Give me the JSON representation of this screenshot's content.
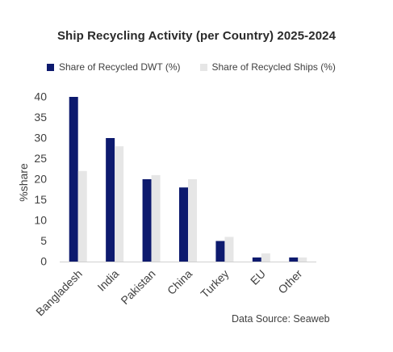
{
  "chart_data": {
    "type": "bar",
    "title": "Ship Recycling Activity (per Country) 2025-2024",
    "ylabel": "%share",
    "xlabel": "",
    "ylim": [
      0,
      40
    ],
    "yticks": [
      "0",
      "5",
      "10",
      "15",
      "20",
      "25",
      "30",
      "35",
      "40"
    ],
    "categories": [
      "Bangladesh",
      "India",
      "Pakistan",
      "China",
      "Turkey",
      "EU",
      "Other"
    ],
    "series": [
      {
        "name": "Share of Recycled DWT (%)",
        "color": "#0d1a6e",
        "values": [
          40,
          30,
          20,
          18,
          5,
          1,
          1
        ]
      },
      {
        "name": "Share of Recycled Ships (%)",
        "color": "#e6e6e6",
        "values": [
          22,
          28,
          21,
          20,
          6,
          2,
          1
        ]
      }
    ],
    "grid": false,
    "legend_position": "top-left",
    "source": "Data Source: Seaweb"
  }
}
